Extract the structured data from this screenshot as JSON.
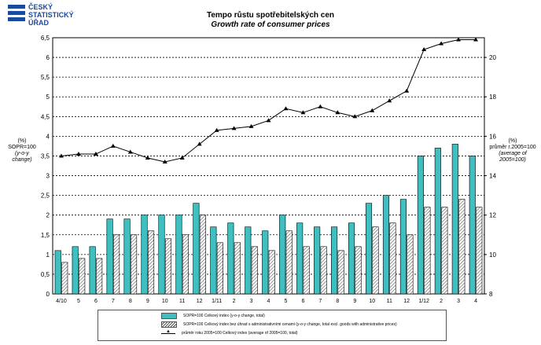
{
  "logo": {
    "line1": "ČESKÝ",
    "line2": "STATISTICKÝ",
    "line3": "ÚŘAD",
    "color": "#1a4a9c"
  },
  "header": {
    "title_cs": "Tempo růstu spotřebitelských cen",
    "title_en": "Growth rate of consumer prices"
  },
  "axes": {
    "left_unit": "(%)",
    "left_label": "SOPR=100",
    "left_sub": "(y-o-y change)",
    "right_unit": "(%)",
    "right_label": "průměr r.2005=100",
    "right_sub": "(average of 2005=100)"
  },
  "legend": {
    "item1": "SOPR=100 Celkový index (y-o-y change, total)",
    "item2": "SOPR=100 Celkový index bez úhrad s administrativními cenami (y-o-y change, total excl. goods with administrative prices)",
    "item3": "průměr roku 2005=100 Celkový index (average of 2005=100, total)"
  },
  "colors": {
    "teal": "#3fbfbf",
    "hatch": "#555555",
    "line": "#000000"
  },
  "chart_data": {
    "type": "bar",
    "categories": [
      "4/10",
      "5",
      "6",
      "7",
      "8",
      "9",
      "10",
      "11",
      "12",
      "1/11",
      "2",
      "3",
      "4",
      "5",
      "6",
      "7",
      "8",
      "9",
      "10",
      "11",
      "12",
      "1/12",
      "2",
      "3",
      "4"
    ],
    "series": [
      {
        "name": "SOPR=100 Celkový index (y-o-y change, total)",
        "type": "bar",
        "axis": "left",
        "values": [
          1.1,
          1.2,
          1.2,
          1.9,
          1.9,
          2.0,
          2.0,
          2.0,
          2.3,
          1.7,
          1.8,
          1.7,
          1.6,
          2.0,
          1.8,
          1.7,
          1.7,
          1.8,
          2.3,
          2.5,
          2.4,
          3.5,
          3.7,
          3.8,
          3.5
        ]
      },
      {
        "name": "SOPR=100 Celkový index bez úhrad s administrativními cenami (y-o-y change, total excl. goods with administrative prices)",
        "type": "bar",
        "axis": "left",
        "values": [
          0.8,
          0.9,
          0.9,
          1.5,
          1.5,
          1.6,
          1.4,
          1.5,
          2.0,
          1.3,
          1.3,
          1.2,
          1.1,
          1.6,
          1.2,
          1.2,
          1.1,
          1.2,
          1.7,
          1.8,
          1.5,
          2.2,
          2.2,
          2.4,
          2.2
        ]
      },
      {
        "name": "průměr roku 2005=100 Celkový index (average of 2005=100, total)",
        "type": "line",
        "axis": "right",
        "values": [
          15.0,
          15.1,
          15.1,
          15.5,
          15.2,
          14.9,
          14.7,
          14.9,
          15.6,
          16.3,
          16.4,
          16.5,
          16.8,
          17.4,
          17.2,
          17.5,
          17.2,
          17.0,
          17.3,
          17.8,
          18.3,
          20.4,
          20.7,
          20.9,
          20.9
        ]
      }
    ],
    "y_left": {
      "ylim": [
        0,
        6.5
      ],
      "ticks": [
        "0",
        "0,5",
        "1",
        "1,5",
        "2",
        "2,5",
        "3",
        "3,5",
        "4",
        "4,5",
        "5",
        "5,5",
        "6",
        "6,5"
      ]
    },
    "y_right": {
      "ylim": [
        8,
        21
      ],
      "ticks": [
        "8",
        "10",
        "12",
        "14",
        "16",
        "18",
        "20"
      ]
    },
    "grid": true
  }
}
